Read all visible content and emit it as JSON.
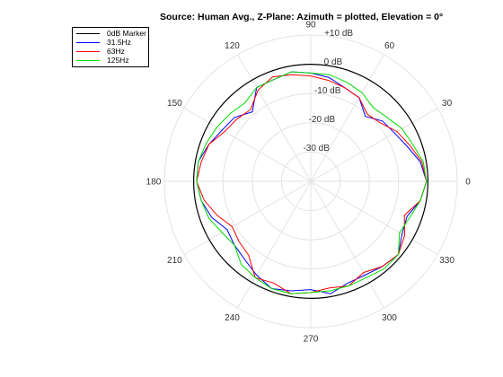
{
  "chart_data": {
    "type": "polar-line",
    "title": "Source: Human Avg., Z-Plane: Azimuth = plotted, Elevation = 0°",
    "r_unit": "dB",
    "r_range": [
      -40,
      10
    ],
    "r_ticks": [
      -30,
      -20,
      -10,
      0,
      10
    ],
    "r_tick_labels": [
      "-30 dB",
      "-20 dB",
      "-10 dB",
      "0 dB",
      "+10 dB"
    ],
    "theta_ticks": [
      0,
      30,
      60,
      90,
      120,
      150,
      180,
      210,
      240,
      270,
      300,
      330
    ],
    "theta_tick_labels": [
      "0",
      "30",
      "60",
      "90",
      "120",
      "150",
      "180",
      "210",
      "240",
      "270",
      "300",
      "330"
    ],
    "legend_position": "top-left",
    "series": [
      {
        "name": "0dB Marker",
        "color": "#000000",
        "angles": [
          0,
          360
        ],
        "values": [
          0,
          0
        ]
      },
      {
        "name": "31.5Hz",
        "color": "#0000ff",
        "angles": [
          0,
          10,
          20,
          30,
          40,
          50,
          60,
          70,
          80,
          90,
          100,
          110,
          120,
          130,
          140,
          150,
          160,
          170,
          180,
          190,
          200,
          210,
          220,
          230,
          240,
          250,
          260,
          270,
          280,
          290,
          300,
          310,
          320,
          330,
          340,
          350,
          360
        ],
        "values": [
          -0.5,
          -2,
          -5,
          -7,
          -8,
          -11,
          -7,
          -6,
          -4,
          -3,
          -2,
          -3,
          -3,
          -9,
          -6,
          -5,
          -3,
          -1,
          -1,
          -2,
          -4,
          -7,
          -6,
          -5,
          -3,
          -1,
          -2,
          -3,
          -1,
          -3,
          -3,
          -2,
          -1,
          -4,
          -5,
          -2,
          -0.5
        ]
      },
      {
        "name": "63Hz",
        "color": "#ff0000",
        "angles": [
          0,
          10,
          20,
          30,
          40,
          50,
          60,
          70,
          80,
          90,
          100,
          110,
          120,
          130,
          140,
          150,
          160,
          170,
          180,
          190,
          200,
          210,
          220,
          230,
          240,
          250,
          260,
          270,
          280,
          290,
          300,
          310,
          320,
          330,
          340,
          350,
          360
        ],
        "values": [
          -0.5,
          -1.5,
          -4,
          -6,
          -9,
          -10,
          -7,
          -6,
          -5,
          -4,
          -3,
          -2,
          -4,
          -8,
          -7,
          -6,
          -3,
          -2,
          -1,
          -3,
          -6,
          -9,
          -8,
          -7,
          -2,
          -3,
          -1,
          -2,
          -3,
          -2,
          -4,
          -2,
          -1,
          -3,
          -6,
          -2,
          -0.5
        ]
      },
      {
        "name": "125Hz",
        "color": "#00dd00",
        "angles": [
          0,
          10,
          20,
          30,
          40,
          50,
          60,
          70,
          80,
          90,
          100,
          110,
          120,
          130,
          140,
          150,
          160,
          170,
          180,
          190,
          200,
          210,
          220,
          230,
          240,
          250,
          260,
          270,
          280,
          290,
          300,
          310,
          320,
          330,
          340,
          350,
          360
        ],
        "values": [
          -0.5,
          -1,
          -3,
          -4,
          -6,
          -7,
          -5,
          -4,
          -3,
          -3,
          -2,
          -3,
          -3,
          -5,
          -4,
          -3,
          -2,
          -1,
          -1,
          -2,
          -3,
          -5,
          -6,
          -3,
          -2,
          -1,
          -1,
          -2,
          -2,
          -2,
          -2,
          -1,
          -1,
          -5,
          -4,
          -2,
          -0.5
        ]
      }
    ]
  }
}
